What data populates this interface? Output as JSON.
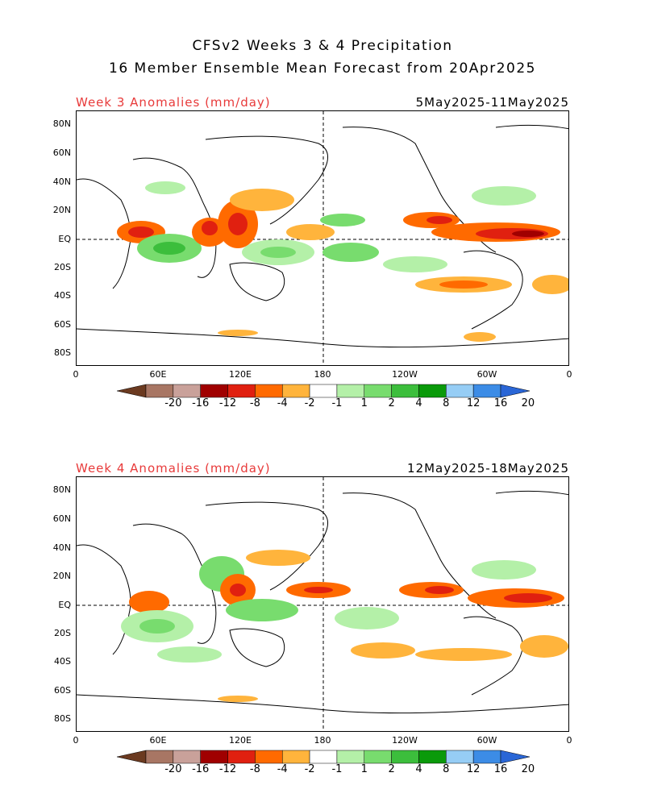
{
  "header": {
    "line1": "CFSv2 Weeks 3 & 4 Precipitation",
    "line2": "16 Member Ensemble Mean Forecast from 20Apr2025"
  },
  "panels": [
    {
      "label": "Week 3 Anomalies (mm/day)",
      "dates": "5May2025-11May2025"
    },
    {
      "label": "Week 4 Anomalies (mm/day)",
      "dates": "12May2025-18May2025"
    }
  ],
  "axes": {
    "lat_ticks": [
      "80N",
      "60N",
      "40N",
      "20N",
      "EQ",
      "20S",
      "40S",
      "60S",
      "80S"
    ],
    "lon_ticks": [
      "0",
      "60E",
      "120E",
      "180",
      "120W",
      "60W",
      "0"
    ]
  },
  "colorbar": {
    "labels": [
      "-20",
      "-16",
      "-12",
      "-8",
      "-4",
      "-2",
      "-1",
      "1",
      "2",
      "4",
      "8",
      "12",
      "16",
      "20"
    ],
    "colors": [
      "#6b3a20",
      "#a87664",
      "#c9a19a",
      "#a00000",
      "#e02010",
      "#ff6a00",
      "#ffb43c",
      "#ffffff",
      "#b4f0a8",
      "#78dc6e",
      "#3cbe3c",
      "#0a9a0a",
      "#96cdf5",
      "#3c8ce6",
      "#2a66d6"
    ]
  },
  "colors": {
    "dry_light": "#ffb43c",
    "dry_mid": "#ff6a00",
    "dry_strong": "#e02010",
    "dry_extreme": "#a00000",
    "wet_light": "#b4f0a8",
    "wet_mid": "#78dc6e",
    "wet_strong": "#3cbe3c",
    "wet_extreme": "#0a9a0a",
    "label_red": "#e83a3a"
  }
}
